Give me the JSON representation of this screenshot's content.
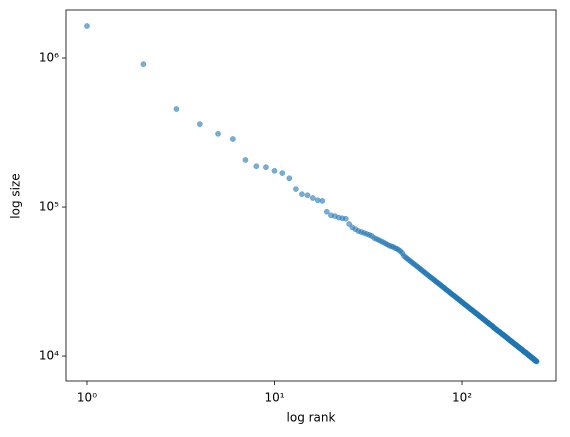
{
  "chart_data": {
    "type": "scatter",
    "xlabel": "log rank",
    "ylabel": "log size",
    "xscale": "log",
    "yscale": "log",
    "xlim": [
      0.773,
      317
    ],
    "ylim": [
      6800,
      2100000
    ],
    "xticks": [
      {
        "value": 1,
        "label": "10⁰"
      },
      {
        "value": 10,
        "label": "10¹"
      },
      {
        "value": 100,
        "label": "10²"
      }
    ],
    "yticks": [
      {
        "value": 10000,
        "label": "10⁴"
      },
      {
        "value": 100000,
        "label": "10⁵"
      },
      {
        "value": 1000000,
        "label": "10⁶"
      }
    ],
    "series": [
      {
        "color": "#1f77b4",
        "x": [
          1,
          2,
          3,
          4,
          5,
          6,
          7,
          8,
          9,
          10,
          11,
          12,
          13,
          14,
          15,
          16,
          17,
          18,
          19,
          20,
          21,
          22,
          23,
          24,
          25,
          26,
          27,
          28,
          29,
          30,
          31,
          32,
          33,
          34,
          35,
          36,
          37,
          38,
          39,
          40,
          41,
          42,
          43,
          44,
          45,
          46,
          47,
          48,
          49,
          50,
          51,
          52,
          53,
          54,
          55,
          56,
          57,
          58,
          59,
          60,
          61,
          62,
          63,
          64,
          65,
          66,
          67,
          68,
          69,
          70,
          71,
          72,
          73,
          74,
          75,
          76,
          77,
          78,
          79,
          80,
          81,
          82,
          83,
          84,
          85,
          86,
          87,
          88,
          89,
          90,
          91,
          92,
          93,
          94,
          95,
          96,
          97,
          98,
          99,
          100,
          101,
          102,
          103,
          104,
          105,
          106,
          107,
          108,
          109,
          110,
          111,
          112,
          113,
          114,
          115,
          116,
          117,
          118,
          119,
          120,
          121,
          122,
          123,
          124,
          125,
          126,
          127,
          128,
          129,
          130,
          131,
          132,
          133,
          134,
          135,
          136,
          137,
          138,
          139,
          140,
          141,
          142,
          143,
          144,
          145,
          146,
          147,
          148,
          149,
          150,
          151,
          152,
          153,
          154,
          155,
          156,
          157,
          158,
          159,
          160,
          161,
          162,
          163,
          164,
          165,
          166,
          167,
          168,
          169,
          170,
          171,
          172,
          173,
          174,
          175,
          176,
          177,
          178,
          179,
          180,
          181,
          182,
          183,
          184,
          185,
          186,
          187,
          188,
          189,
          190,
          191,
          192,
          193,
          194,
          195,
          196,
          197,
          198,
          199,
          200,
          201,
          202,
          203,
          204,
          205,
          206,
          207,
          208,
          209,
          210,
          211,
          212,
          213,
          214,
          215,
          216,
          217,
          218,
          219,
          220,
          221,
          222,
          223,
          224,
          225,
          226,
          227,
          228,
          229,
          230,
          231,
          232,
          233,
          234,
          235,
          236,
          237,
          238,
          239,
          240,
          241,
          242,
          243,
          244,
          245,
          246,
          247,
          248,
          249,
          250
        ],
        "values": [
          1640000,
          910000,
          455000,
          360000,
          310000,
          286000,
          207000,
          188000,
          185000,
          175000,
          169000,
          156000,
          132000,
          122000,
          120000,
          115000,
          111000,
          110000,
          93000,
          88000,
          87000,
          85000,
          84000,
          83500,
          77000,
          73000,
          71000,
          69000,
          68000,
          67000,
          66000,
          65000,
          64000,
          62000,
          61000,
          60000,
          59000,
          58000,
          57000,
          56000,
          55000,
          54500,
          54000,
          53000,
          52500,
          51500,
          50500,
          49000,
          47000,
          46000,
          45100,
          44200,
          43400,
          42600,
          41800,
          41100,
          40400,
          39700,
          39000,
          38300,
          37700,
          37100,
          36500,
          35900,
          35400,
          34800,
          34300,
          33800,
          33300,
          32900,
          32400,
          31900,
          31500,
          31100,
          30700,
          30300,
          29900,
          29500,
          29100,
          28800,
          28400,
          28000,
          27700,
          27400,
          27100,
          26700,
          26400,
          26100,
          25800,
          25600,
          25300,
          25000,
          24700,
          24500,
          24200,
          24000,
          23700,
          23500,
          23200,
          23000,
          22800,
          22500,
          22300,
          22100,
          21900,
          21700,
          21500,
          21300,
          21100,
          20900,
          20700,
          20500,
          20400,
          20200,
          20000,
          19800,
          19700,
          19500,
          19300,
          19200,
          19000,
          18900,
          18700,
          18500,
          18400,
          18300,
          18100,
          18000,
          17800,
          17700,
          17600,
          17400,
          17300,
          17200,
          17000,
          16900,
          16800,
          16700,
          16500,
          16400,
          16300,
          16200,
          16100,
          16000,
          15900,
          15800,
          15600,
          15500,
          15400,
          15300,
          15200,
          15100,
          15000,
          14900,
          14800,
          14700,
          14600,
          14600,
          14500,
          14400,
          14300,
          14200,
          14100,
          14000,
          13900,
          13900,
          13800,
          13700,
          13600,
          13500,
          13500,
          13400,
          13300,
          13200,
          13100,
          13100,
          13000,
          12900,
          12800,
          12800,
          12700,
          12600,
          12600,
          12500,
          12400,
          12400,
          12300,
          12200,
          12200,
          12100,
          12000,
          12000,
          11900,
          11900,
          11800,
          11700,
          11700,
          11600,
          11600,
          11500,
          11400,
          11400,
          11300,
          11300,
          11200,
          11200,
          11100,
          11100,
          11000,
          11000,
          10900,
          10800,
          10800,
          10700,
          10700,
          10600,
          10600,
          10600,
          10500,
          10500,
          10400,
          10400,
          10300,
          10300,
          10200,
          10200,
          10100,
          10100,
          10000,
          10000,
          10000,
          9900,
          9900,
          9800,
          9800,
          9700,
          9700,
          9700,
          9600,
          9600,
          9500,
          9500,
          9500,
          9400,
          9400,
          9300,
          9300,
          9300,
          9200,
          9200
        ]
      }
    ]
  }
}
